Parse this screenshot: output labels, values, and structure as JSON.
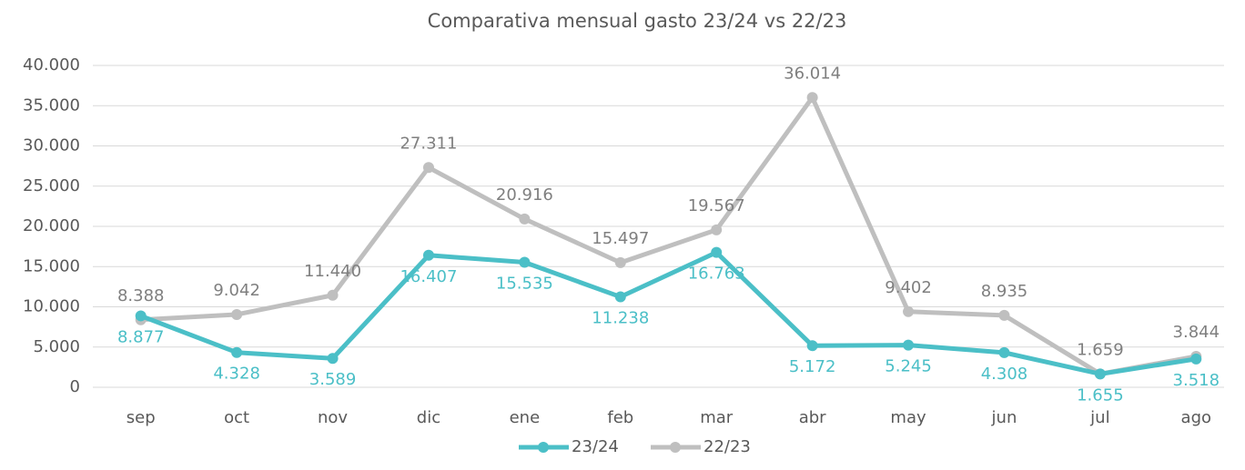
{
  "chart_data": {
    "type": "line",
    "title": "Comparativa mensual gasto 23/24 vs 22/23",
    "categories": [
      "sep",
      "oct",
      "nov",
      "dic",
      "ene",
      "feb",
      "mar",
      "abr",
      "may",
      "jun",
      "jul",
      "ago"
    ],
    "series": [
      {
        "name": "23/24",
        "color": "#4bbfc7",
        "label_color": "#4bbfc7",
        "values": [
          8877,
          4328,
          3589,
          16407,
          15535,
          11238,
          16763,
          5172,
          5245,
          4308,
          1655,
          3518
        ],
        "value_labels": [
          "8.877",
          "4.328",
          "3.589",
          "16.407",
          "15.535",
          "11.238",
          "16.763",
          "5.172",
          "5.245",
          "4.308",
          "1.655",
          "3.518"
        ]
      },
      {
        "name": "22/23",
        "color": "#bfbfbf",
        "label_color": "#7f7f7f",
        "values": [
          8388,
          9042,
          11440,
          27311,
          20916,
          15497,
          19567,
          36014,
          9402,
          8935,
          1659,
          3844
        ],
        "value_labels": [
          "8.388",
          "9.042",
          "11.440",
          "27.311",
          "20.916",
          "15.497",
          "19.567",
          "36.014",
          "9.402",
          "8.935",
          "1.659",
          "3.844"
        ]
      }
    ],
    "ylim": [
      0,
      40000
    ],
    "yticks": [
      0,
      {
        "value": 5000,
        "label": "5.000"
      },
      {
        "value": 10000,
        "label": "10.000"
      },
      {
        "value": 15000,
        "label": "15.000"
      },
      {
        "value": 20000,
        "label": "20.000"
      },
      {
        "value": 25000,
        "label": "25.000"
      },
      {
        "value": 30000,
        "label": "30.000"
      },
      {
        "value": 35000,
        "label": "35.000"
      },
      {
        "value": 40000,
        "label": "40.000"
      }
    ],
    "grid": true,
    "legend": "bottom"
  }
}
